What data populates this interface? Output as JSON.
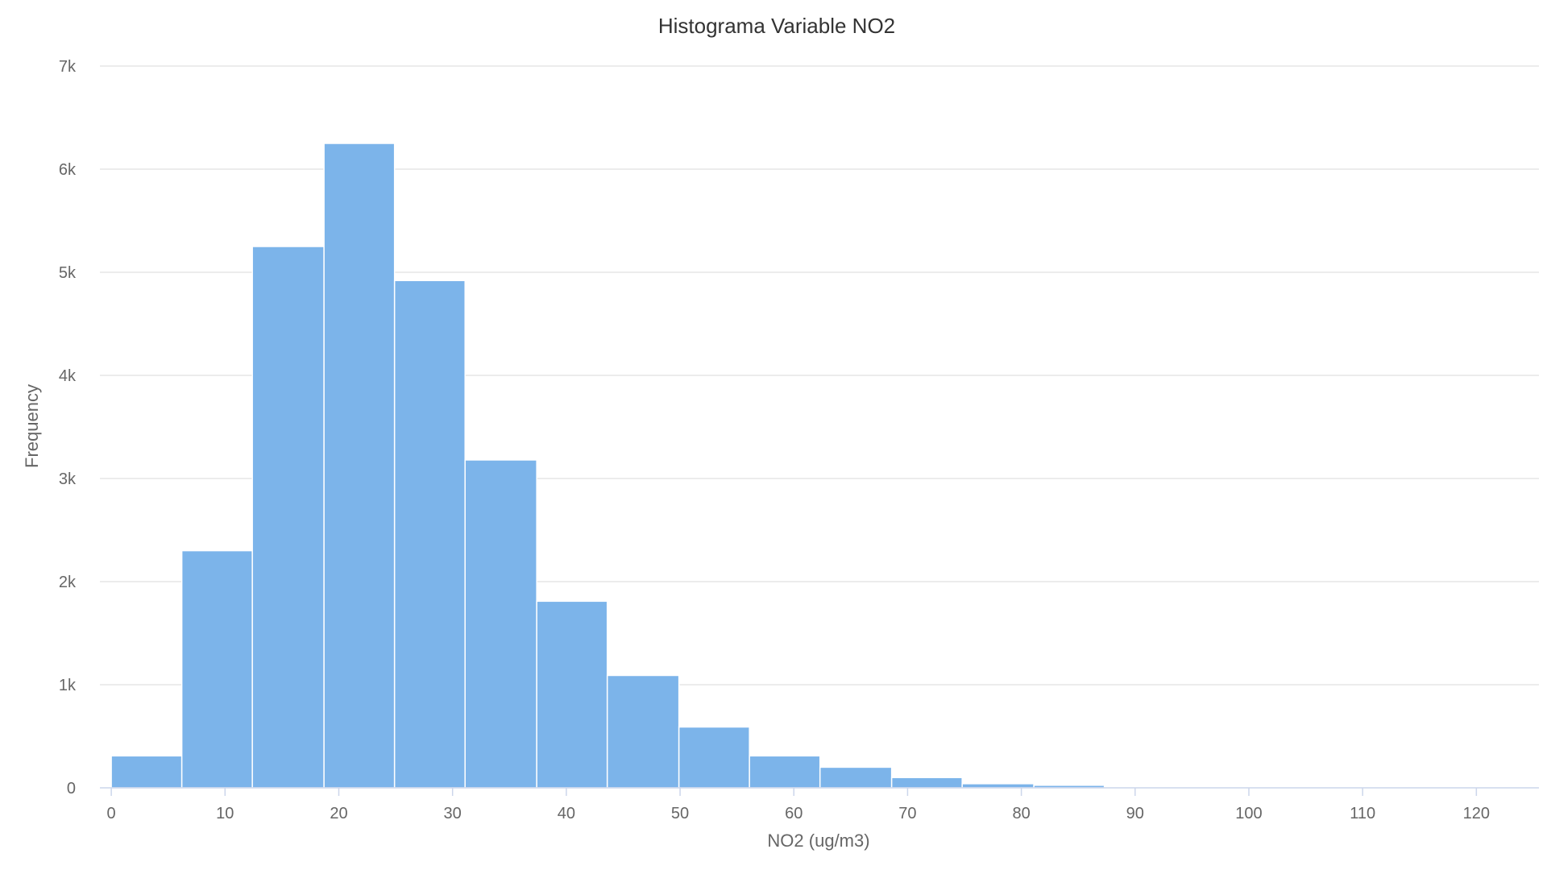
{
  "chart_data": {
    "type": "histogram",
    "title": "Histograma Variable NO2",
    "xlabel": "NO2 (ug/m3)",
    "ylabel": "Frequency",
    "xlim": [
      -1,
      125.5
    ],
    "ylim": [
      0,
      7000
    ],
    "x_ticks": [
      0,
      10,
      20,
      30,
      40,
      50,
      60,
      70,
      80,
      90,
      100,
      110,
      120
    ],
    "x_tick_labels": [
      "0",
      "10",
      "20",
      "30",
      "40",
      "50",
      "60",
      "70",
      "80",
      "90",
      "100",
      "110",
      "120"
    ],
    "y_ticks": [
      0,
      1000,
      2000,
      3000,
      4000,
      5000,
      6000,
      7000
    ],
    "y_tick_labels": [
      "0",
      "1k",
      "2k",
      "3k",
      "4k",
      "5k",
      "6k",
      "7k"
    ],
    "grid": true,
    "bar_color": "#7cb4ea",
    "bins": [
      {
        "x0": 0.0,
        "x1": 6.2,
        "count": 310
      },
      {
        "x0": 6.2,
        "x1": 12.4,
        "count": 2300
      },
      {
        "x0": 12.4,
        "x1": 18.7,
        "count": 5250
      },
      {
        "x0": 18.7,
        "x1": 24.9,
        "count": 6250
      },
      {
        "x0": 24.9,
        "x1": 31.1,
        "count": 4920
      },
      {
        "x0": 31.1,
        "x1": 37.4,
        "count": 3180
      },
      {
        "x0": 37.4,
        "x1": 43.6,
        "count": 1810
      },
      {
        "x0": 43.6,
        "x1": 49.9,
        "count": 1090
      },
      {
        "x0": 49.9,
        "x1": 56.1,
        "count": 590
      },
      {
        "x0": 56.1,
        "x1": 62.3,
        "count": 310
      },
      {
        "x0": 62.3,
        "x1": 68.6,
        "count": 200
      },
      {
        "x0": 68.6,
        "x1": 74.8,
        "count": 100
      },
      {
        "x0": 74.8,
        "x1": 81.1,
        "count": 40
      },
      {
        "x0": 81.1,
        "x1": 87.3,
        "count": 25
      },
      {
        "x0": 87.3,
        "x1": 93.5,
        "count": 8
      },
      {
        "x0": 93.5,
        "x1": 99.8,
        "count": 5
      },
      {
        "x0": 99.8,
        "x1": 106.0,
        "count": 3
      },
      {
        "x0": 106.0,
        "x1": 112.2,
        "count": 2
      },
      {
        "x0": 112.2,
        "x1": 118.5,
        "count": 2
      },
      {
        "x0": 118.5,
        "x1": 125.5,
        "count": 1
      }
    ]
  }
}
